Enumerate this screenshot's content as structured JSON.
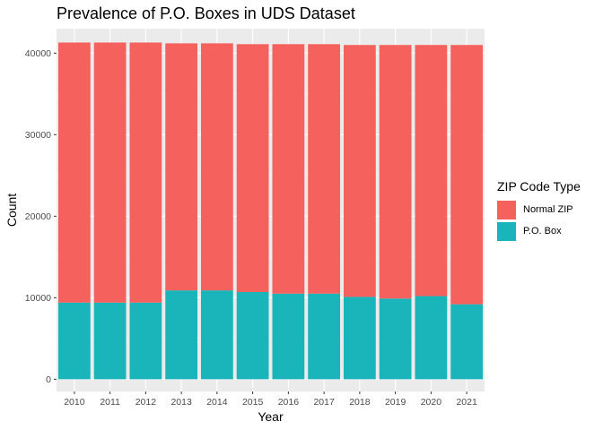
{
  "chart_data": {
    "type": "bar",
    "stacked": true,
    "title": "Prevalence of P.O. Boxes in UDS Dataset",
    "xlabel": "Year",
    "ylabel": "Count",
    "categories": [
      "2010",
      "2011",
      "2012",
      "2013",
      "2014",
      "2015",
      "2016",
      "2017",
      "2018",
      "2019",
      "2020",
      "2021"
    ],
    "series": [
      {
        "name": "P.O. Box",
        "color": "#1AB5BA",
        "values": [
          9400,
          9400,
          9400,
          10900,
          10900,
          10700,
          10500,
          10500,
          10100,
          9900,
          10200,
          9200
        ]
      },
      {
        "name": "Normal ZIP",
        "color": "#F5625E",
        "values": [
          31900,
          31900,
          31900,
          30300,
          30300,
          30400,
          30600,
          30600,
          30900,
          31100,
          30800,
          31800
        ]
      }
    ],
    "ylim": [
      -1500,
      43000
    ],
    "yticks": [
      0,
      10000,
      20000,
      30000,
      40000
    ],
    "yticklabels": [
      "0",
      "10000",
      "20000",
      "30000",
      "40000"
    ],
    "legend": {
      "title": "ZIP Code Type",
      "position": "right",
      "entries": [
        {
          "label": "Normal ZIP",
          "color": "#F5625E"
        },
        {
          "label": "P.O. Box",
          "color": "#1AB5BA"
        }
      ]
    },
    "grid": true,
    "panel_background": "#EBEBEB"
  }
}
